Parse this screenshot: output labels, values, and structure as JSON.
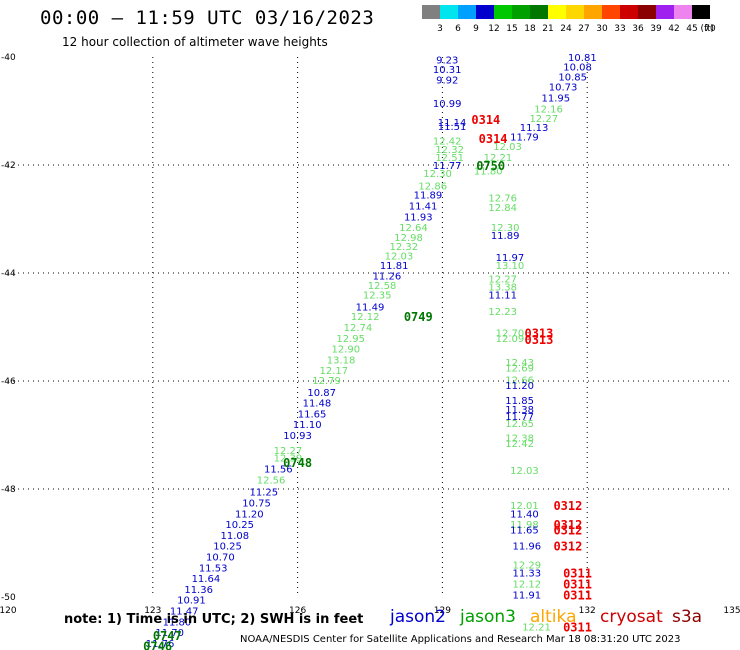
{
  "header": {
    "title": "00:00 – 11:59 UTC 03/16/2023",
    "subtitle": "12 hour collection of altimeter wave heights"
  },
  "colorbar": {
    "labels": [
      "3",
      "6",
      "9",
      "12",
      "15",
      "18",
      "21",
      "24",
      "27",
      "30",
      "33",
      "36",
      "39",
      "42",
      "45",
      "70"
    ],
    "unit": "(ft)",
    "colors": [
      "#808080",
      "#00e5ee",
      "#00a0ff",
      "#0000cd",
      "#00c800",
      "#00a000",
      "#007800",
      "#ffff00",
      "#ffd700",
      "#ffa500",
      "#ff4500",
      "#cd0000",
      "#8b0000",
      "#a020f0",
      "#ee82ee",
      "#000000"
    ]
  },
  "footer": {
    "note": "note: 1) Time is in UTC; 2) SWH is in feet",
    "satellites": [
      {
        "name": "jason2",
        "color": "#0000cd"
      },
      {
        "name": "jason3",
        "color": "#00a000"
      },
      {
        "name": "altika",
        "color": "#ffa500"
      },
      {
        "name": "cryosat",
        "color": "#cd0000"
      },
      {
        "name": "s3a",
        "color": "#8b0000"
      }
    ],
    "credit": "NOAA/NESDIS Center for Satellite Applications and Research    Mar 18 08:31:20 UTC 2023"
  },
  "chart_data": {
    "type": "scatter",
    "xlim": [
      120,
      135
    ],
    "ylim": [
      -50,
      -40
    ],
    "x_ticks": [
      120,
      123,
      126,
      129,
      132,
      135
    ],
    "y_ticks": [
      -40,
      -42,
      -44,
      -46,
      -48,
      -50
    ],
    "y_tick_labels": [
      "-40",
      "-42",
      "-44",
      "-46",
      "-48",
      "-50"
    ],
    "grid": true,
    "colors": {
      "blue": "#0000cd",
      "light": "#66dd66",
      "green": "#007800",
      "red": "#ee0000"
    },
    "track_labels": [
      {
        "x": 129.1,
        "y": -40.05,
        "text": "9.23",
        "c": "blue"
      },
      {
        "x": 129.1,
        "y": -40.22,
        "text": "10.31",
        "c": "blue"
      },
      {
        "x": 129.1,
        "y": -40.42,
        "text": "9.92",
        "c": "blue"
      },
      {
        "x": 129.1,
        "y": -40.85,
        "text": "10.99",
        "c": "blue"
      },
      {
        "x": 129.2,
        "y": -41.2,
        "text": "11.14",
        "c": "blue"
      },
      {
        "x": 129.2,
        "y": -41.28,
        "text": "11.51",
        "c": "blue"
      },
      {
        "x": 129.1,
        "y": -41.55,
        "text": "12.42",
        "c": "light"
      },
      {
        "x": 129.15,
        "y": -41.7,
        "text": "12.32",
        "c": "light"
      },
      {
        "x": 129.15,
        "y": -41.85,
        "text": "12.51",
        "c": "light"
      },
      {
        "x": 129.1,
        "y": -42.0,
        "text": "11.77",
        "c": "blue"
      },
      {
        "x": 128.9,
        "y": -42.15,
        "text": "12.30",
        "c": "light"
      },
      {
        "x": 128.8,
        "y": -42.38,
        "text": "12.86",
        "c": "light"
      },
      {
        "x": 128.7,
        "y": -42.55,
        "text": "11.89",
        "c": "blue"
      },
      {
        "x": 128.6,
        "y": -42.75,
        "text": "11.41",
        "c": "blue"
      },
      {
        "x": 128.5,
        "y": -42.95,
        "text": "11.93",
        "c": "blue"
      },
      {
        "x": 128.4,
        "y": -43.15,
        "text": "12.64",
        "c": "light"
      },
      {
        "x": 128.3,
        "y": -43.33,
        "text": "12.98",
        "c": "light"
      },
      {
        "x": 128.2,
        "y": -43.5,
        "text": "12.32",
        "c": "light"
      },
      {
        "x": 128.1,
        "y": -43.68,
        "text": "12.03",
        "c": "light"
      },
      {
        "x": 128.0,
        "y": -43.85,
        "text": "11.81",
        "c": "blue"
      },
      {
        "x": 127.85,
        "y": -44.05,
        "text": "11.26",
        "c": "blue"
      },
      {
        "x": 127.75,
        "y": -44.22,
        "text": "12.58",
        "c": "light"
      },
      {
        "x": 127.65,
        "y": -44.4,
        "text": "12.35",
        "c": "light"
      },
      {
        "x": 127.5,
        "y": -44.62,
        "text": "11.49",
        "c": "blue"
      },
      {
        "x": 127.4,
        "y": -44.8,
        "text": "12.12",
        "c": "light"
      },
      {
        "x": 127.25,
        "y": -45.0,
        "text": "12.74",
        "c": "light"
      },
      {
        "x": 127.1,
        "y": -45.2,
        "text": "12.95",
        "c": "light"
      },
      {
        "x": 127.0,
        "y": -45.4,
        "text": "12.90",
        "c": "light"
      },
      {
        "x": 126.9,
        "y": -45.6,
        "text": "13.18",
        "c": "light"
      },
      {
        "x": 126.75,
        "y": -45.8,
        "text": "12.17",
        "c": "light"
      },
      {
        "x": 126.6,
        "y": -45.98,
        "text": "12.79",
        "c": "light"
      },
      {
        "x": 126.5,
        "y": -46.2,
        "text": "10.87",
        "c": "blue"
      },
      {
        "x": 126.4,
        "y": -46.4,
        "text": "11.48",
        "c": "blue"
      },
      {
        "x": 126.3,
        "y": -46.6,
        "text": "11.65",
        "c": "blue"
      },
      {
        "x": 126.2,
        "y": -46.8,
        "text": "11.10",
        "c": "blue"
      },
      {
        "x": 126.0,
        "y": -47.0,
        "text": "10.93",
        "c": "blue"
      },
      {
        "x": 125.8,
        "y": -47.28,
        "text": "12.27",
        "c": "light"
      },
      {
        "x": 125.8,
        "y": -47.42,
        "text": "12.39",
        "c": "light"
      },
      {
        "x": 125.6,
        "y": -47.62,
        "text": "11.56",
        "c": "blue"
      },
      {
        "x": 125.45,
        "y": -47.82,
        "text": "12.56",
        "c": "light"
      },
      {
        "x": 125.3,
        "y": -48.05,
        "text": "11.25",
        "c": "blue"
      },
      {
        "x": 125.15,
        "y": -48.25,
        "text": "10.75",
        "c": "blue"
      },
      {
        "x": 125.0,
        "y": -48.45,
        "text": "11.20",
        "c": "blue"
      },
      {
        "x": 124.8,
        "y": -48.65,
        "text": "10.25",
        "c": "blue"
      },
      {
        "x": 124.7,
        "y": -48.85,
        "text": "11.08",
        "c": "blue"
      },
      {
        "x": 124.55,
        "y": -49.05,
        "text": "10.25",
        "c": "blue"
      },
      {
        "x": 124.4,
        "y": -49.25,
        "text": "10.70",
        "c": "blue"
      },
      {
        "x": 124.25,
        "y": -49.45,
        "text": "11.53",
        "c": "blue"
      },
      {
        "x": 124.1,
        "y": -49.65,
        "text": "11.64",
        "c": "blue"
      },
      {
        "x": 123.95,
        "y": -49.85,
        "text": "11.36",
        "c": "blue"
      },
      {
        "x": 123.8,
        "y": -50.05,
        "text": "10.91",
        "c": "blue"
      },
      {
        "x": 123.65,
        "y": -50.25,
        "text": "11.47",
        "c": "blue"
      },
      {
        "x": 123.5,
        "y": -50.45,
        "text": "11.80",
        "c": "blue"
      },
      {
        "x": 123.35,
        "y": -50.65,
        "text": "11.70",
        "c": "blue"
      },
      {
        "x": 123.15,
        "y": -50.85,
        "text": "11.76",
        "c": "blue"
      },
      {
        "x": 131.9,
        "y": -40.0,
        "text": "10.81",
        "c": "blue"
      },
      {
        "x": 131.8,
        "y": -40.18,
        "text": "10.08",
        "c": "blue"
      },
      {
        "x": 131.7,
        "y": -40.36,
        "text": "10.85",
        "c": "blue"
      },
      {
        "x": 131.5,
        "y": -40.55,
        "text": "10.73",
        "c": "blue"
      },
      {
        "x": 131.35,
        "y": -40.75,
        "text": "11.95",
        "c": "blue"
      },
      {
        "x": 131.2,
        "y": -40.95,
        "text": "12.16",
        "c": "light"
      },
      {
        "x": 131.1,
        "y": -41.13,
        "text": "12.27",
        "c": "light"
      },
      {
        "x": 130.9,
        "y": -41.3,
        "text": "11.13",
        "c": "blue"
      },
      {
        "x": 130.7,
        "y": -41.47,
        "text": "11.79",
        "c": "blue"
      },
      {
        "x": 130.35,
        "y": -41.65,
        "text": "12.03",
        "c": "light"
      },
      {
        "x": 130.15,
        "y": -41.85,
        "text": "12.21",
        "c": "light"
      },
      {
        "x": 129.95,
        "y": -42.1,
        "text": "11.80",
        "c": "light"
      },
      {
        "x": 130.25,
        "y": -42.6,
        "text": "12.76",
        "c": "light"
      },
      {
        "x": 130.25,
        "y": -42.78,
        "text": "12.84",
        "c": "light"
      },
      {
        "x": 130.3,
        "y": -43.15,
        "text": "12.30",
        "c": "light"
      },
      {
        "x": 130.3,
        "y": -43.3,
        "text": "11.89",
        "c": "blue"
      },
      {
        "x": 130.4,
        "y": -43.7,
        "text": "11.97",
        "c": "blue"
      },
      {
        "x": 130.4,
        "y": -43.85,
        "text": "13.10",
        "c": "light"
      },
      {
        "x": 130.25,
        "y": -44.1,
        "text": "12.27",
        "c": "light"
      },
      {
        "x": 130.25,
        "y": -44.25,
        "text": "13.38",
        "c": "light"
      },
      {
        "x": 130.25,
        "y": -44.4,
        "text": "11.11",
        "c": "blue"
      },
      {
        "x": 130.25,
        "y": -44.7,
        "text": "12.23",
        "c": "light"
      },
      {
        "x": 130.4,
        "y": -45.1,
        "text": "12.70",
        "c": "light"
      },
      {
        "x": 130.4,
        "y": -45.2,
        "text": "12.09",
        "c": "light"
      },
      {
        "x": 130.6,
        "y": -45.65,
        "text": "12.43",
        "c": "light"
      },
      {
        "x": 130.6,
        "y": -45.75,
        "text": "12.69",
        "c": "light"
      },
      {
        "x": 130.6,
        "y": -45.97,
        "text": "12.66",
        "c": "light"
      },
      {
        "x": 130.6,
        "y": -46.07,
        "text": "11.20",
        "c": "blue"
      },
      {
        "x": 130.6,
        "y": -46.35,
        "text": "11.85",
        "c": "blue"
      },
      {
        "x": 130.6,
        "y": -46.52,
        "text": "11.38",
        "c": "blue"
      },
      {
        "x": 130.6,
        "y": -46.65,
        "text": "11.77",
        "c": "blue"
      },
      {
        "x": 130.6,
        "y": -46.78,
        "text": "12.65",
        "c": "light"
      },
      {
        "x": 130.6,
        "y": -47.05,
        "text": "12.38",
        "c": "light"
      },
      {
        "x": 130.6,
        "y": -47.15,
        "text": "12.42",
        "c": "light"
      },
      {
        "x": 130.7,
        "y": -47.65,
        "text": "12.03",
        "c": "light"
      },
      {
        "x": 130.7,
        "y": -48.3,
        "text": "12.01",
        "c": "light"
      },
      {
        "x": 130.7,
        "y": -48.45,
        "text": "11.40",
        "c": "blue"
      },
      {
        "x": 130.7,
        "y": -48.65,
        "text": "11.98",
        "c": "light"
      },
      {
        "x": 130.7,
        "y": -48.75,
        "text": "11.65",
        "c": "blue"
      },
      {
        "x": 130.75,
        "y": -49.05,
        "text": "11.96",
        "c": "blue"
      },
      {
        "x": 130.75,
        "y": -49.4,
        "text": "12.29",
        "c": "light"
      },
      {
        "x": 130.75,
        "y": -49.55,
        "text": "11.33",
        "c": "blue"
      },
      {
        "x": 130.75,
        "y": -49.75,
        "text": "12.12",
        "c": "light"
      },
      {
        "x": 130.75,
        "y": -49.95,
        "text": "11.91",
        "c": "blue"
      },
      {
        "x": 130.95,
        "y": -50.55,
        "text": "12.21",
        "c": "light"
      }
    ],
    "time_labels": [
      {
        "x": 129.9,
        "y": -41.15,
        "text": "0314",
        "c": "red"
      },
      {
        "x": 130.05,
        "y": -41.5,
        "text": "0314",
        "c": "red"
      },
      {
        "x": 130.0,
        "y": -42.0,
        "text": "0750",
        "c": "green"
      },
      {
        "x": 128.5,
        "y": -44.8,
        "text": "0749",
        "c": "green"
      },
      {
        "x": 131.0,
        "y": -45.1,
        "text": "0313",
        "c": "red"
      },
      {
        "x": 131.0,
        "y": -45.22,
        "text": "0313",
        "c": "red"
      },
      {
        "x": 126.0,
        "y": -47.5,
        "text": "0748",
        "c": "green"
      },
      {
        "x": 131.6,
        "y": -48.3,
        "text": "0312",
        "c": "red"
      },
      {
        "x": 131.6,
        "y": -48.65,
        "text": "0312",
        "c": "red"
      },
      {
        "x": 131.6,
        "y": -48.75,
        "text": "0312",
        "c": "red"
      },
      {
        "x": 131.6,
        "y": -49.05,
        "text": "0312",
        "c": "red"
      },
      {
        "x": 131.8,
        "y": -49.55,
        "text": "0311",
        "c": "red"
      },
      {
        "x": 131.8,
        "y": -49.75,
        "text": "0311",
        "c": "red"
      },
      {
        "x": 131.8,
        "y": -49.95,
        "text": "0311",
        "c": "red"
      },
      {
        "x": 131.8,
        "y": -50.55,
        "text": "0311",
        "c": "red"
      },
      {
        "x": 123.3,
        "y": -50.7,
        "text": "0747",
        "c": "green"
      },
      {
        "x": 123.1,
        "y": -50.9,
        "text": "0746",
        "c": "green"
      }
    ]
  }
}
